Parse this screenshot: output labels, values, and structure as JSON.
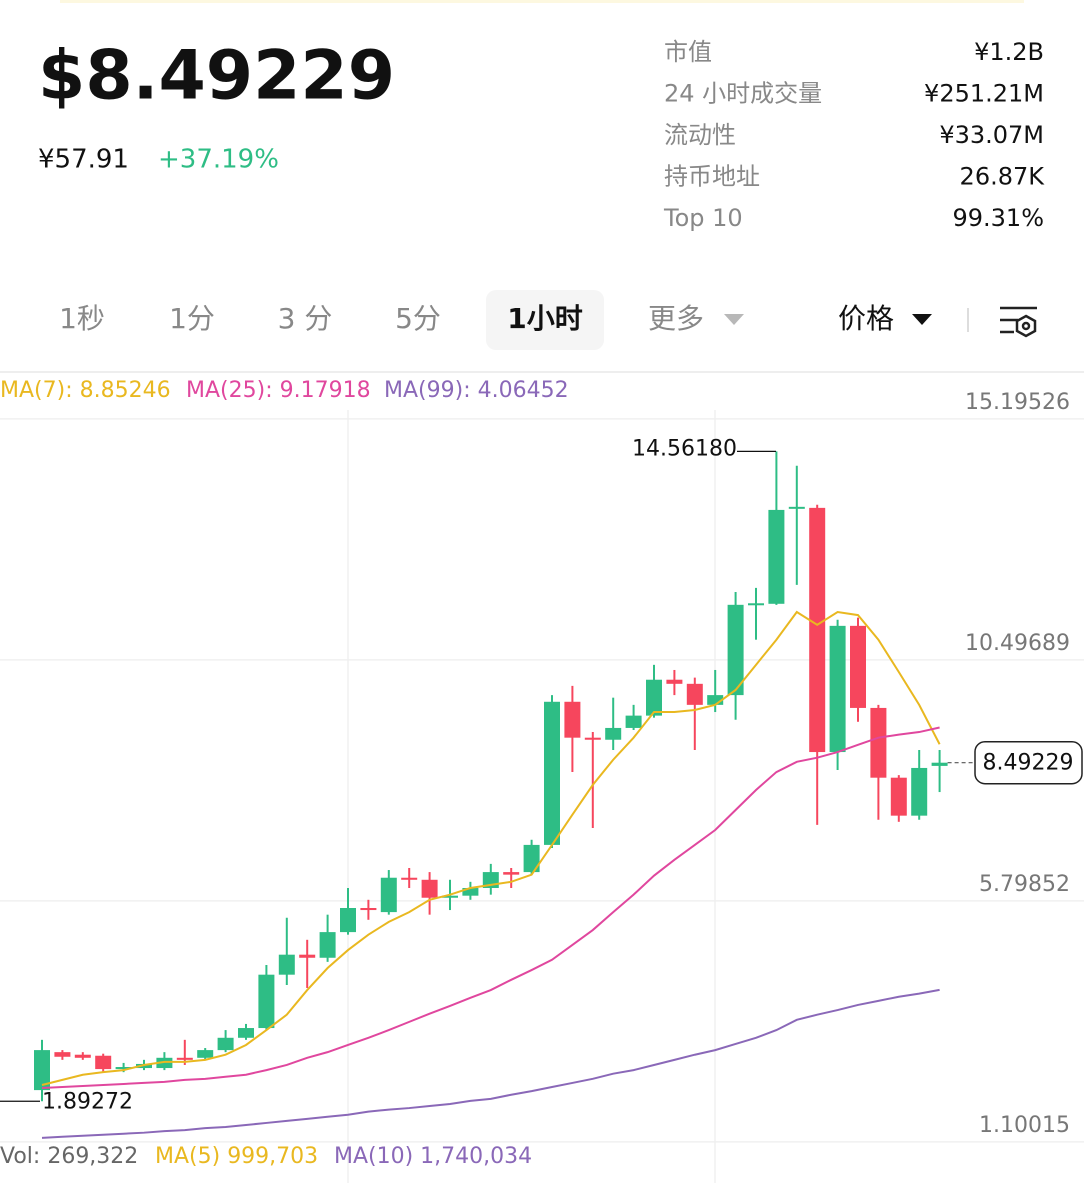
{
  "header": {
    "price": "$8.49229",
    "fiat_price": "¥57.91",
    "change": "+37.19%",
    "stats": [
      {
        "label": "市值",
        "value": "¥1.2B"
      },
      {
        "label": "24 小时成交量",
        "value": "¥251.21M"
      },
      {
        "label": "流动性",
        "value": "¥33.07M"
      },
      {
        "label": "持币地址",
        "value": "26.87K"
      },
      {
        "label": "Top 10",
        "value": "99.31%"
      }
    ]
  },
  "tabs": [
    "1秒",
    "1分",
    "3 分",
    "5分",
    "1小时",
    "更多"
  ],
  "active_tab": 4,
  "price_selector": "价格",
  "chart_data": {
    "type": "candlestick",
    "up_color": "#2ebd85",
    "down_color": "#f6465d",
    "open": [
      2.11,
      2.85,
      2.8,
      2.78,
      2.52,
      2.54,
      2.54,
      2.74,
      2.74,
      2.89,
      3.13,
      3.32,
      4.36,
      4.75,
      4.69,
      5.19,
      5.66,
      5.58,
      6.25,
      6.21,
      5.86,
      5.9,
      6.05,
      6.36,
      6.36,
      6.89,
      9.68,
      8.98,
      8.94,
      9.17,
      9.41,
      10.11,
      10.03,
      9.62,
      9.81,
      11.59,
      11.59,
      13.46,
      13.46,
      8.7,
      11.16,
      9.56,
      8.2,
      7.46,
      8.43
    ],
    "high": [
      3.09,
      2.89,
      2.85,
      2.82,
      2.64,
      2.7,
      2.85,
      3.09,
      2.93,
      3.28,
      3.4,
      4.55,
      5.47,
      5.04,
      5.53,
      6.05,
      5.82,
      6.4,
      6.44,
      6.36,
      6.21,
      6.17,
      6.52,
      6.44,
      6.99,
      9.81,
      9.99,
      9.09,
      9.76,
      9.62,
      10.4,
      10.3,
      10.15,
      10.3,
      11.82,
      11.9,
      14.5618,
      14.28,
      13.52,
      11.28,
      11.32,
      9.62,
      8.25,
      8.74,
      8.74
    ],
    "low": [
      1.89272,
      2.7,
      2.7,
      2.46,
      2.46,
      2.5,
      2.5,
      2.6,
      2.7,
      2.85,
      3.09,
      3.28,
      4.16,
      4.1,
      4.61,
      5.14,
      5.43,
      5.53,
      6.05,
      5.53,
      5.62,
      5.82,
      5.92,
      6.05,
      6.31,
      6.83,
      8.31,
      7.22,
      8.74,
      9.13,
      9.37,
      9.81,
      8.74,
      9.48,
      9.33,
      10.89,
      11.57,
      11.96,
      7.28,
      8.35,
      9.29,
      7.38,
      7.34,
      7.38,
      7.92
    ],
    "close": [
      2.89,
      2.76,
      2.74,
      2.52,
      2.56,
      2.62,
      2.74,
      2.7,
      2.89,
      3.13,
      3.32,
      4.36,
      4.75,
      4.69,
      5.19,
      5.66,
      5.62,
      6.25,
      6.21,
      5.86,
      5.9,
      6.05,
      6.36,
      6.31,
      6.89,
      9.68,
      8.98,
      8.94,
      9.17,
      9.41,
      10.11,
      10.03,
      9.62,
      9.81,
      11.57,
      11.6,
      13.42,
      13.48,
      8.7,
      11.16,
      9.56,
      8.2,
      7.46,
      8.39,
      8.49229
    ],
    "series": [
      {
        "name": "MA(7)",
        "legend": "MA(7): 8.85246",
        "color": "#e9b820",
        "values": [
          2.21,
          2.31,
          2.41,
          2.46,
          2.5,
          2.6,
          2.66,
          2.66,
          2.7,
          2.8,
          2.99,
          3.28,
          3.58,
          4.06,
          4.49,
          4.84,
          5.14,
          5.39,
          5.58,
          5.82,
          5.92,
          6.05,
          6.11,
          6.17,
          6.31,
          6.89,
          7.48,
          8.06,
          8.55,
          8.98,
          9.48,
          9.48,
          9.52,
          9.62,
          9.91,
          10.4,
          10.89,
          11.43,
          11.18,
          11.43,
          11.37,
          10.89,
          10.26,
          9.62,
          8.85246
        ]
      },
      {
        "name": "MA(25)",
        "legend": "MA(25): 9.17918",
        "color": "#e0479e",
        "values": [
          2.15,
          2.17,
          2.19,
          2.21,
          2.23,
          2.25,
          2.27,
          2.31,
          2.33,
          2.37,
          2.41,
          2.5,
          2.6,
          2.74,
          2.85,
          2.99,
          3.13,
          3.28,
          3.44,
          3.6,
          3.75,
          3.91,
          4.06,
          4.26,
          4.45,
          4.65,
          4.94,
          5.23,
          5.58,
          5.92,
          6.29,
          6.6,
          6.89,
          7.18,
          7.57,
          7.96,
          8.31,
          8.51,
          8.59,
          8.7,
          8.84,
          8.98,
          9.04,
          9.09,
          9.17918
        ]
      },
      {
        "name": "MA(99)",
        "legend": "MA(99): 4.06452",
        "color": "#8a68b8",
        "values": [
          1.18,
          1.2,
          1.22,
          1.24,
          1.26,
          1.28,
          1.31,
          1.33,
          1.37,
          1.39,
          1.43,
          1.47,
          1.51,
          1.55,
          1.59,
          1.63,
          1.69,
          1.73,
          1.76,
          1.8,
          1.84,
          1.9,
          1.94,
          2.02,
          2.09,
          2.17,
          2.25,
          2.33,
          2.43,
          2.5,
          2.6,
          2.7,
          2.8,
          2.89,
          3.01,
          3.13,
          3.28,
          3.48,
          3.58,
          3.67,
          3.77,
          3.85,
          3.93,
          3.99,
          4.06452
        ]
      }
    ],
    "ylim": [
      1.04,
      16.05
    ],
    "yticks": [
      15.19526,
      10.49689,
      5.79852,
      1.10015
    ],
    "grid": true,
    "annotations": [
      {
        "value": 14.5618,
        "label": "14.56180"
      }
    ],
    "volume_legend": [
      {
        "text": "Vol: 269,322",
        "color": "#666666"
      },
      {
        "text": "MA(5) 999,703",
        "color": "#e9b820"
      },
      {
        "text": "MA(10) 1,740,034",
        "color": "#8a68b8"
      }
    ]
  }
}
